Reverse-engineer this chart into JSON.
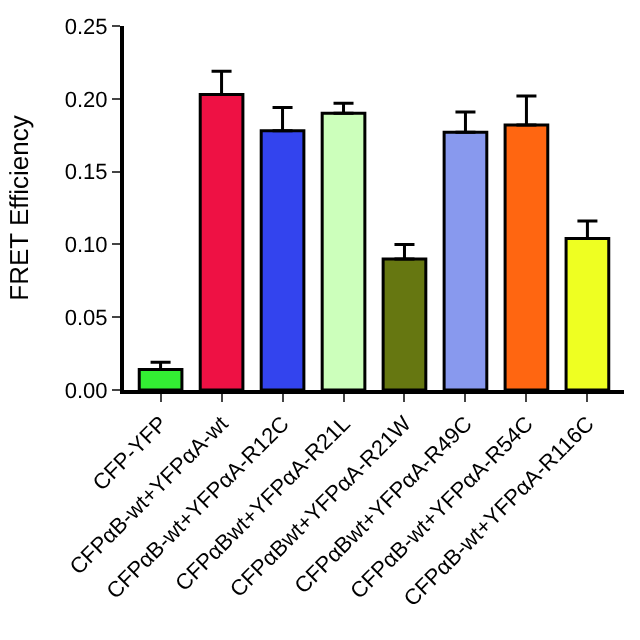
{
  "chart_data": {
    "type": "bar",
    "ylabel": "FRET Efficiency",
    "categories": [
      "CFP-YFP",
      "CFPαB-wt+YFPαA-wt",
      "CFPαB-wt+YFPαA-R12C",
      "CFPαBwt+YFPαA-R21L",
      "CFPαBwt+YFPαA-R21W",
      "CFPαBwt+YFPαA-R49C",
      "CFPαB-wt+YFPαA-R54C",
      "CFPαB-wt+YFPαA-R116C"
    ],
    "values": [
      0.014,
      0.203,
      0.178,
      0.19,
      0.09,
      0.177,
      0.182,
      0.104
    ],
    "errors": [
      [
        0.014,
        0.019
      ],
      [
        0.203,
        0.219
      ],
      [
        0.178,
        0.194
      ],
      [
        0.19,
        0.197
      ],
      [
        0.09,
        0.1
      ],
      [
        0.177,
        0.191
      ],
      [
        0.182,
        0.202
      ],
      [
        0.104,
        0.116
      ]
    ],
    "colors": [
      "#33ee33",
      "#ee1144",
      "#3344ee",
      "#ccffbb",
      "#667711",
      "#8899ee",
      "#ff6611",
      "#eeff22"
    ],
    "ylim": [
      0,
      0.25
    ],
    "yticks": [
      {
        "value": 0,
        "label": "0.00"
      },
      {
        "value": 0.05,
        "label": "0.05"
      },
      {
        "value": 0.1,
        "label": "0.10"
      },
      {
        "value": 0.15,
        "label": "0.15"
      },
      {
        "value": 0.2,
        "label": "0.20"
      },
      {
        "value": 0.25,
        "label": "0.25"
      }
    ],
    "legend": false
  }
}
